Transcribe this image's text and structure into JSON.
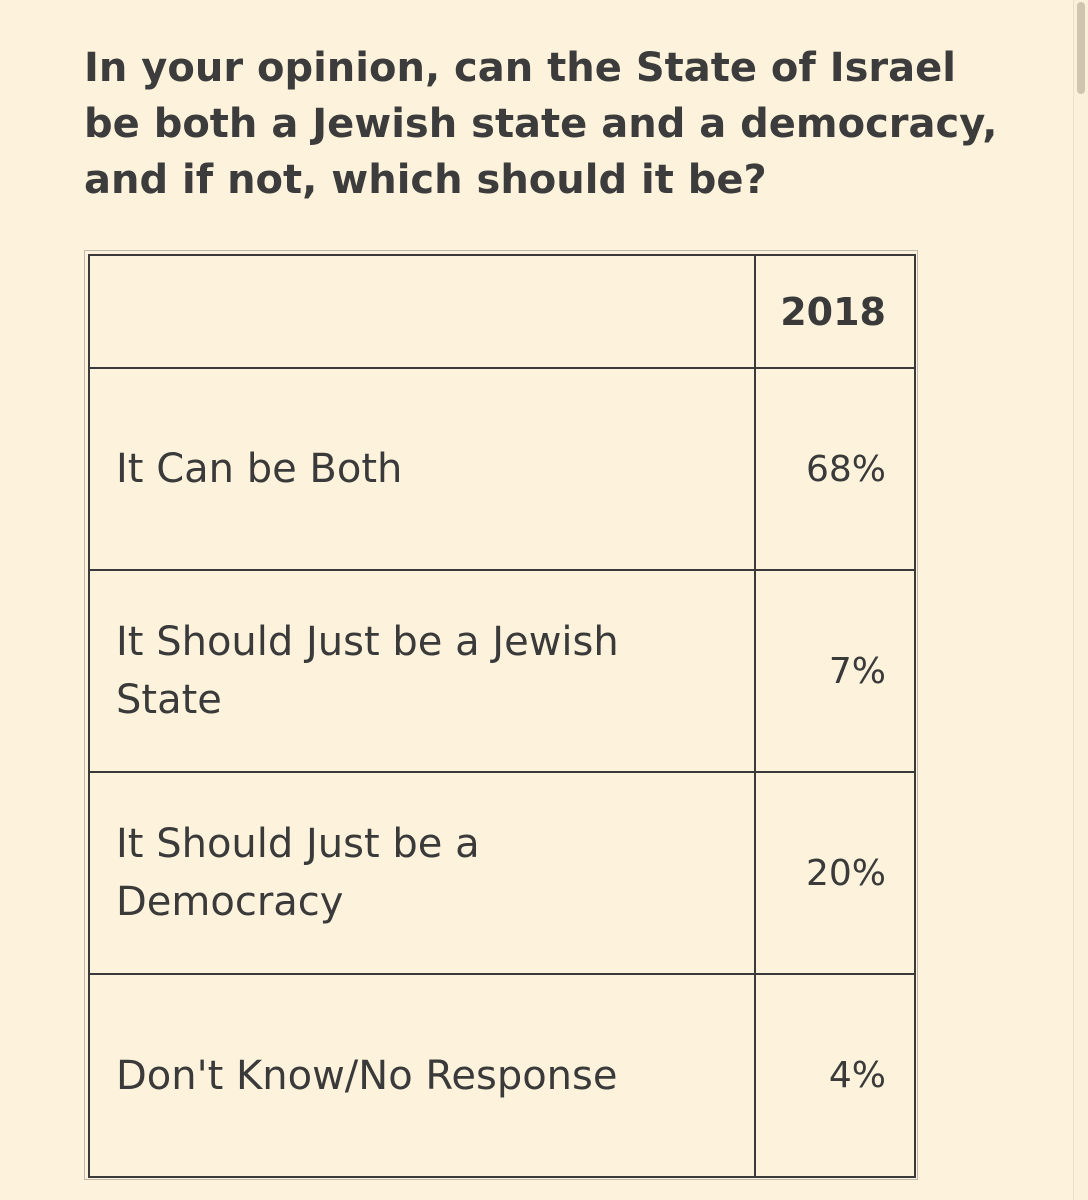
{
  "question": "In your opinion, can the State of Israel be both a Jewish state and a democracy, and if not, which should it be?",
  "table": {
    "header_label": "",
    "header_year": "2018",
    "rows": [
      {
        "label": "It Can be Both",
        "value": "68%"
      },
      {
        "label": "It Should Just be a Jewish State",
        "value": "7%"
      },
      {
        "label": "It Should Just be a Democracy",
        "value": "20%"
      },
      {
        "label": "Don't Know/No Response",
        "value": "4%"
      }
    ]
  }
}
